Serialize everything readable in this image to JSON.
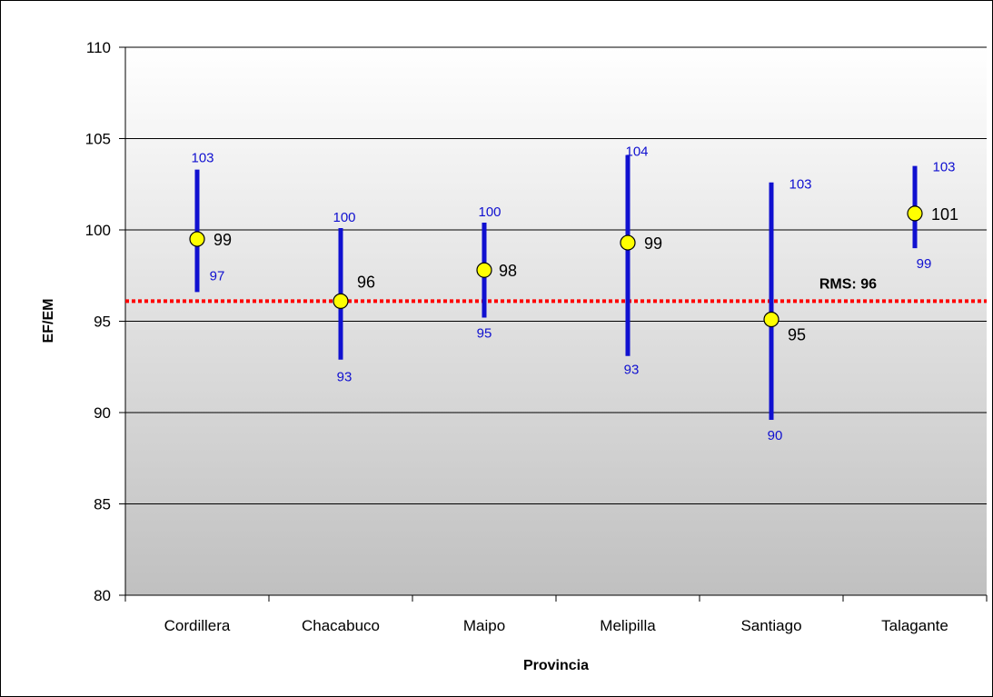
{
  "chart_data": {
    "type": "error-bar",
    "categories": [
      "Cordillera",
      "Chacabuco",
      "Maipo",
      "Melipilla",
      "Santiago",
      "Talagante"
    ],
    "values": [
      99.5,
      96.1,
      97.8,
      99.3,
      95.1,
      100.9
    ],
    "value_labels": [
      "99",
      "96",
      "98",
      "99",
      "95",
      "101"
    ],
    "upper": [
      103.3,
      100.1,
      100.4,
      104.1,
      102.6,
      103.5
    ],
    "upper_labels": [
      "103",
      "100",
      "100",
      "104",
      "103",
      "103"
    ],
    "lower": [
      96.6,
      92.9,
      95.2,
      93.1,
      89.6,
      99.0
    ],
    "lower_labels": [
      "97",
      "93",
      "95",
      "93",
      "90",
      "99"
    ],
    "reference_line": {
      "value": 96.1,
      "label": "RMS: 96",
      "color": "#ff0000"
    },
    "xlabel": "Provincia",
    "ylabel": "EF/EM",
    "ylim": [
      80,
      110
    ],
    "yticks": [
      "80",
      "85",
      "90",
      "95",
      "100",
      "105",
      "110"
    ],
    "grid": true,
    "colors": {
      "bar": "#1010d0",
      "marker_fill": "#ffff00",
      "marker_stroke": "#000000",
      "range_label": "#1010d0"
    }
  }
}
